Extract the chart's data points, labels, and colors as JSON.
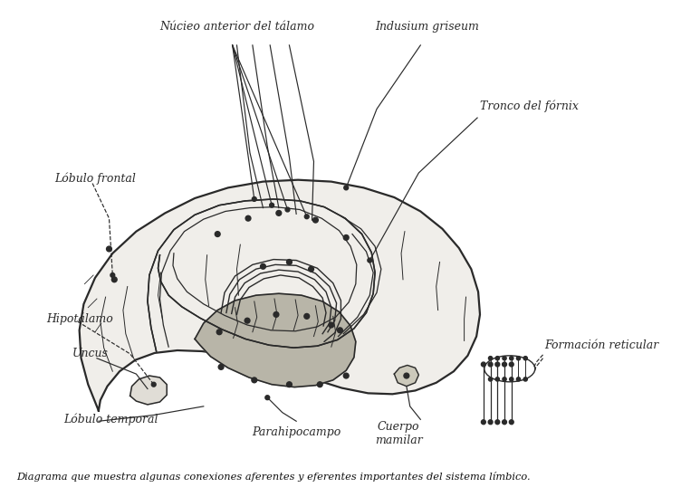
{
  "caption": "Diagrama que muestra algunas conexiones aferentes y eferentes importantes del sistema límbico.",
  "background_color": "#ffffff",
  "line_color": "#2a2a2a",
  "dot_color": "#2a2a2a",
  "fill_brain": "#f0eeea",
  "fill_cingulate": "#dddbd5",
  "fill_hippo": "#b8b5a8",
  "fill_uncus": "#e0ddd6",
  "figsize": [
    7.52,
    5.49
  ],
  "dpi": 100,
  "labels": {
    "nucleo_anterior": "Núcieo anterior del tálamo",
    "indusium": "Indusium griseum",
    "lobulo_frontal": "Lóbulo frontal",
    "tronco_fornix": "Tronco del fórnix",
    "hipotalamo": "Hipotálamo",
    "uncus": "Uncus",
    "lobulo_temporal": "Lóbulo temporal",
    "parahipocampo": "Parahipocampo",
    "cuerpo_mamilar": "Cuerpo\nmamilar",
    "formacion_reticular": "Formación reticular"
  }
}
